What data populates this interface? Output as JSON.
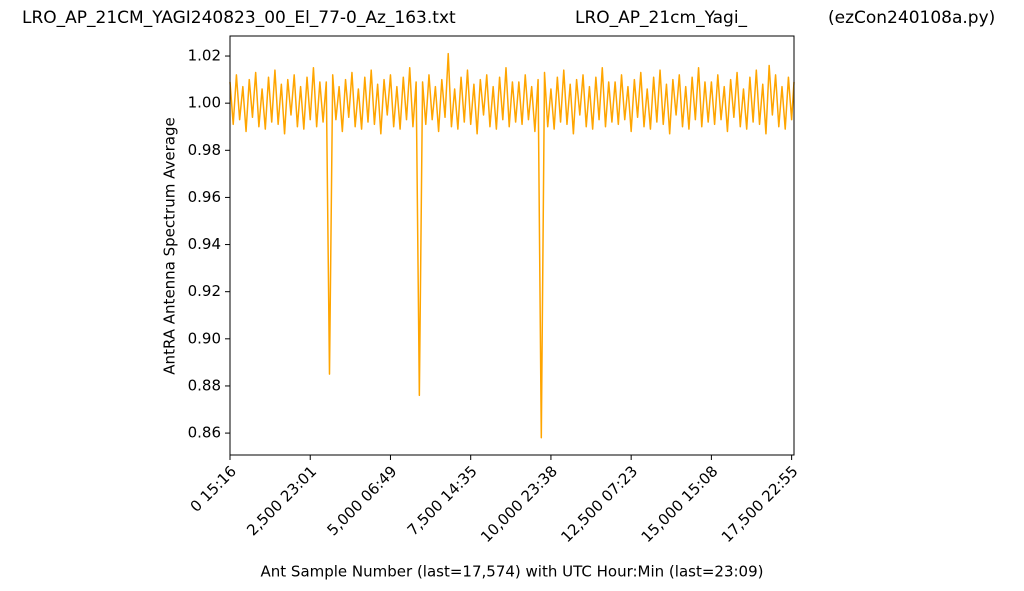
{
  "chart_data": {
    "type": "line",
    "title": "LRO_AP_21CM_YAGI240823_00_El_77-0_Az_163.txt",
    "subtitle": "LRO_AP_21cm_Yagi_",
    "annotation": "(ezCon240108a.py)",
    "xlabel": "Ant Sample Number (last=17,574) with UTC Hour:Min (last=23:09)",
    "ylabel": "AntRA Antenna Spectrum Average",
    "xlim": [
      0,
      17574
    ],
    "ylim": [
      0.8507,
      1.0285
    ],
    "xticks": [
      {
        "value": 0,
        "label": "0  15:16"
      },
      {
        "value": 2500,
        "label": "2,500  23:01"
      },
      {
        "value": 5000,
        "label": "5,000  06:49"
      },
      {
        "value": 7500,
        "label": "7,500  14:35"
      },
      {
        "value": 10000,
        "label": "10,000  23:38"
      },
      {
        "value": 12500,
        "label": "12,500  07:23"
      },
      {
        "value": 15000,
        "label": "15,000  15:08"
      },
      {
        "value": 17500,
        "label": "17,500  22:55"
      }
    ],
    "yticks": [
      0.86,
      0.88,
      {
        "value": 0.9,
        "label": "0.90"
      },
      0.92,
      0.94,
      0.96,
      0.98,
      {
        "value": 1,
        "label": "1.00"
      },
      1.02
    ],
    "x": [
      0,
      100,
      200,
      300,
      400,
      500,
      600,
      700,
      800,
      900,
      1000,
      1100,
      1200,
      1300,
      1400,
      1500,
      1600,
      1700,
      1800,
      1900,
      2000,
      2100,
      2200,
      2300,
      2400,
      2500,
      2600,
      2700,
      2800,
      2900,
      3000,
      3100,
      3200,
      3300,
      3400,
      3500,
      3600,
      3700,
      3800,
      3900,
      4000,
      4100,
      4200,
      4300,
      4400,
      4500,
      4600,
      4700,
      4800,
      4900,
      5000,
      5100,
      5200,
      5300,
      5400,
      5500,
      5600,
      5700,
      5800,
      5900,
      6000,
      6100,
      6200,
      6300,
      6400,
      6500,
      6600,
      6700,
      6800,
      6900,
      7000,
      7100,
      7200,
      7300,
      7400,
      7500,
      7600,
      7700,
      7800,
      7900,
      8000,
      8100,
      8200,
      8300,
      8400,
      8500,
      8600,
      8700,
      8800,
      8900,
      9000,
      9100,
      9200,
      9300,
      9400,
      9500,
      9600,
      9700,
      9800,
      9900,
      10000,
      10100,
      10200,
      10300,
      10400,
      10500,
      10600,
      10700,
      10800,
      10900,
      11000,
      11100,
      11200,
      11300,
      11400,
      11500,
      11600,
      11700,
      11800,
      11900,
      12000,
      12100,
      12200,
      12300,
      12400,
      12500,
      12600,
      12700,
      12800,
      12900,
      13000,
      13100,
      13200,
      13300,
      13400,
      13500,
      13600,
      13700,
      13800,
      13900,
      14000,
      14100,
      14200,
      14300,
      14400,
      14500,
      14600,
      14700,
      14800,
      14900,
      15000,
      15100,
      15200,
      15300,
      15400,
      15500,
      15600,
      15700,
      15800,
      15900,
      16000,
      16100,
      16200,
      16300,
      16400,
      16500,
      16600,
      16700,
      16800,
      16900,
      17000,
      17100,
      17200,
      17300,
      17400,
      17500,
      17574
    ],
    "series": [
      {
        "color": "#ffa500",
        "values": [
          1.009,
          0.991,
          1.012,
          0.993,
          1.007,
          0.988,
          1.01,
          0.994,
          1.013,
          0.99,
          1.006,
          0.989,
          1.011,
          0.992,
          1.014,
          0.991,
          1.008,
          0.987,
          1.01,
          0.995,
          1.012,
          0.99,
          1.007,
          0.989,
          1.011,
          0.993,
          1.015,
          0.99,
          1.009,
          0.992,
          1.009,
          0.885,
          1.012,
          0.993,
          1.007,
          0.988,
          1.01,
          0.994,
          1.013,
          0.99,
          1.006,
          0.989,
          1.011,
          0.992,
          1.014,
          0.991,
          1.008,
          0.987,
          1.01,
          0.995,
          1.012,
          0.99,
          1.007,
          0.989,
          1.011,
          0.993,
          1.015,
          0.99,
          1.009,
          0.876,
          1.009,
          0.991,
          1.012,
          0.993,
          1.007,
          0.988,
          1.01,
          0.994,
          1.021,
          0.99,
          1.006,
          0.989,
          1.011,
          0.992,
          1.014,
          0.991,
          1.008,
          0.987,
          1.01,
          0.995,
          1.012,
          0.99,
          1.007,
          0.989,
          1.011,
          0.993,
          1.015,
          0.99,
          1.009,
          0.992,
          1.009,
          0.991,
          1.012,
          0.993,
          1.007,
          0.988,
          1.01,
          0.858,
          1.013,
          0.99,
          1.006,
          0.989,
          1.011,
          0.992,
          1.014,
          0.991,
          1.008,
          0.987,
          1.01,
          0.995,
          1.012,
          0.99,
          1.007,
          0.989,
          1.011,
          0.993,
          1.015,
          0.99,
          1.009,
          0.992,
          1.009,
          0.991,
          1.012,
          0.993,
          1.007,
          0.988,
          1.01,
          0.994,
          1.013,
          0.99,
          1.006,
          0.989,
          1.011,
          0.992,
          1.014,
          0.991,
          1.008,
          0.987,
          1.01,
          0.995,
          1.012,
          0.99,
          1.007,
          0.989,
          1.011,
          0.993,
          1.015,
          0.99,
          1.009,
          0.992,
          1.009,
          0.991,
          1.012,
          0.993,
          1.007,
          0.988,
          1.01,
          0.994,
          1.013,
          0.99,
          1.006,
          0.989,
          1.011,
          0.992,
          1.014,
          0.991,
          1.008,
          0.987,
          1.016,
          0.995,
          1.012,
          0.99,
          1.007,
          0.989,
          1.011,
          0.993,
          1.009
        ]
      }
    ]
  }
}
